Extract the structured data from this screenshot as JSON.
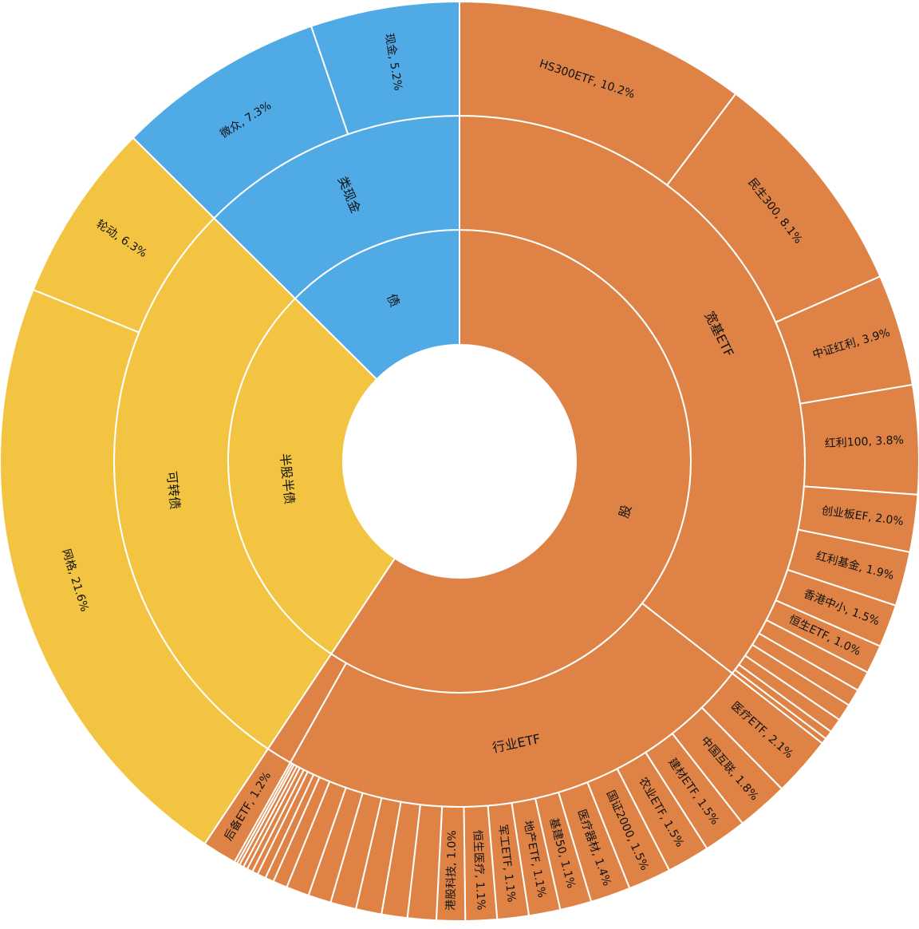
{
  "colors": {
    "股": "#DE8345",
    "债": "#4FAAE6",
    "半股半债": "#F3C442",
    "border": "#FFFFFF"
  },
  "chart_data": {
    "type": "sunburst",
    "start_angle_deg": 0,
    "direction": "clockwise",
    "groups": [
      {
        "name": "股",
        "children": [
          {
            "name": "宽基ETF",
            "children": [
              {
                "label": "HS300ETF, 10.2%",
                "value": 10.2
              },
              {
                "label": "民生300, 8.1%",
                "value": 8.1
              },
              {
                "label": "中证红利, 3.9%",
                "value": 3.9
              },
              {
                "label": "红利100, 3.8%",
                "value": 3.8
              },
              {
                "label": "创业板EF, 2.0%",
                "value": 2.0
              },
              {
                "label": "红利基金, 1.9%",
                "value": 1.9
              },
              {
                "label": "香港中小, 1.5%",
                "value": 1.5
              },
              {
                "label": "恒生ETF, 1.0%",
                "value": 1.0
              },
              {
                "label": "",
                "value": 0.7
              },
              {
                "label": "",
                "value": 0.6
              },
              {
                "label": "",
                "value": 0.6
              },
              {
                "label": "",
                "value": 0.5
              },
              {
                "label": "",
                "value": 0.3
              },
              {
                "label": "",
                "value": 0.2
              }
            ]
          },
          {
            "name": "行业ETF",
            "children": [
              {
                "label": "医疗ETF, 2.1%",
                "value": 2.1
              },
              {
                "label": "中国互联, 1.8%",
                "value": 1.8
              },
              {
                "label": "建材ETF, 1.5%",
                "value": 1.5
              },
              {
                "label": "农业ETF, 1.5%",
                "value": 1.5
              },
              {
                "label": "国证2000, 1.5%",
                "value": 1.5
              },
              {
                "label": "医疗器材, 1.4%",
                "value": 1.4
              },
              {
                "label": "基建50, 1.1%",
                "value": 1.1
              },
              {
                "label": "地产ETF, 1.1%",
                "value": 1.1
              },
              {
                "label": "军工ETF, 1.1%",
                "value": 1.1
              },
              {
                "label": "恒生医疗, 1.1%",
                "value": 1.1
              },
              {
                "label": "港股科技, 1.0%",
                "value": 1.0
              },
              {
                "label": "",
                "value": 1.0
              },
              {
                "label": "",
                "value": 0.9
              },
              {
                "label": "",
                "value": 0.9
              },
              {
                "label": "",
                "value": 0.9
              },
              {
                "label": "",
                "value": 0.8
              },
              {
                "label": "",
                "value": 0.8
              },
              {
                "label": "",
                "value": 0.5
              },
              {
                "label": "",
                "value": 0.3
              },
              {
                "label": "",
                "value": 0.3
              },
              {
                "label": "",
                "value": 0.2
              },
              {
                "label": "",
                "value": 0.2
              },
              {
                "label": "",
                "value": 0.15
              },
              {
                "label": "",
                "value": 0.15
              },
              {
                "label": "",
                "value": 0.1
              },
              {
                "label": "",
                "value": 0.1
              }
            ]
          },
          {
            "name": "",
            "children": [
              {
                "label": "后备ETF, 1.2%",
                "value": 1.2
              }
            ]
          }
        ]
      },
      {
        "name": "半股半债",
        "children": [
          {
            "name": "可转债",
            "children": [
              {
                "label": "网格, 21.6%",
                "value": 21.6
              },
              {
                "label": "轮动, 6.3%",
                "value": 6.3
              }
            ]
          }
        ]
      },
      {
        "name": "债",
        "children": [
          {
            "name": "类现金",
            "children": [
              {
                "label": "微众, 7.3%",
                "value": 7.3
              },
              {
                "label": "现金, 5.2%",
                "value": 5.2
              }
            ]
          }
        ]
      }
    ]
  }
}
